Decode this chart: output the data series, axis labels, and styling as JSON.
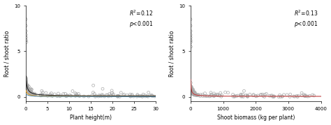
{
  "left": {
    "title": "",
    "xlabel": "Plant height(m)",
    "ylabel": "Root / shoot ratio",
    "xlim": [
      0,
      30
    ],
    "ylim": [
      -0.5,
      10
    ],
    "yticks": [
      0,
      5,
      10
    ],
    "xticks": [
      0,
      5,
      10,
      15,
      20,
      25,
      30
    ],
    "annotation": "$R^2$=0.12\n$p$<0.001",
    "curve_color_black": "#222222",
    "curve_color_orange": "#E8A020",
    "curve_color_blue": "#5588AA"
  },
  "right": {
    "title": "",
    "xlabel": "Shoot biomass (kg per plant)",
    "ylabel": "Root / shoot ratio",
    "xlim": [
      0,
      4000
    ],
    "ylim": [
      -0.5,
      10
    ],
    "yticks": [
      0,
      5,
      10
    ],
    "xticks": [
      0,
      1000,
      2000,
      3000,
      4000
    ],
    "annotation": "$R^2$=0.13\n$p$<0.001",
    "curve_color_red": "#C04040"
  },
  "scatter_color": "#AAAAAA",
  "scatter_edge": "#888888",
  "background": "#FFFFFF"
}
